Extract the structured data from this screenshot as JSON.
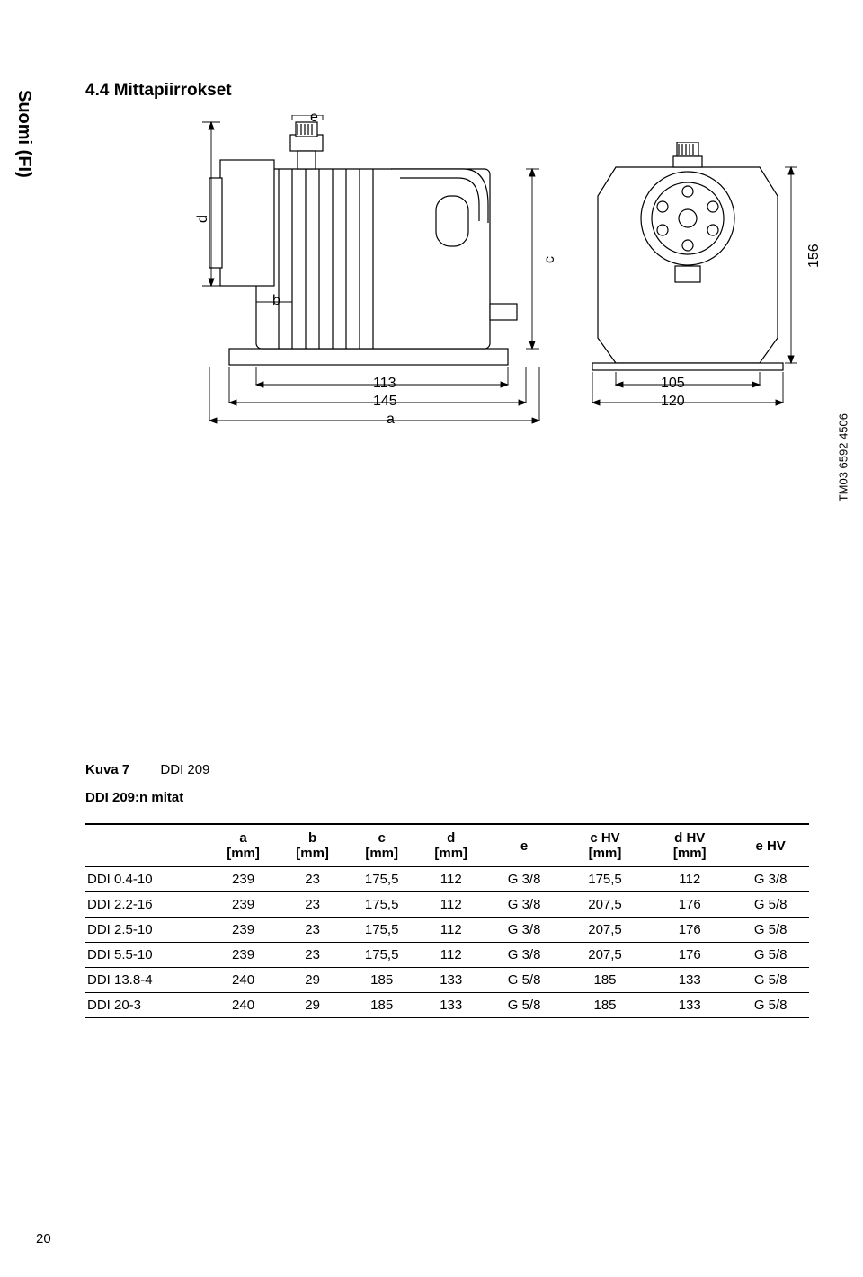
{
  "side_tab": "Suomi (FI)",
  "section_title": "4.4 Mittapiirrokset",
  "doc_ref": "TM03 6592 4506",
  "fig_caption": {
    "label": "Kuva 7",
    "title": "DDI 209"
  },
  "sub_heading": "DDI 209:n mitat",
  "diagram_labels": {
    "e": "e",
    "d": "d",
    "b": "b",
    "c": "c",
    "a": "a",
    "n113": "113",
    "n145": "145",
    "n105": "105",
    "n120": "120",
    "n156": "156"
  },
  "table": {
    "columns": [
      "",
      "a\n[mm]",
      "b\n[mm]",
      "c\n[mm]",
      "d\n[mm]",
      "e",
      "c HV\n[mm]",
      "d HV\n[mm]",
      "e HV"
    ],
    "rows": [
      [
        "DDI 0.4-10",
        "239",
        "23",
        "175,5",
        "112",
        "G 3/8",
        "175,5",
        "112",
        "G 3/8"
      ],
      [
        "DDI 2.2-16",
        "239",
        "23",
        "175,5",
        "112",
        "G 3/8",
        "207,5",
        "176",
        "G 5/8"
      ],
      [
        "DDI 2.5-10",
        "239",
        "23",
        "175,5",
        "112",
        "G 3/8",
        "207,5",
        "176",
        "G 5/8"
      ],
      [
        "DDI 5.5-10",
        "239",
        "23",
        "175,5",
        "112",
        "G 3/8",
        "207,5",
        "176",
        "G 5/8"
      ],
      [
        "DDI 13.8-4",
        "240",
        "29",
        "185",
        "133",
        "G 5/8",
        "185",
        "133",
        "G 5/8"
      ],
      [
        "DDI 20-3",
        "240",
        "29",
        "185",
        "133",
        "G 5/8",
        "185",
        "133",
        "G 5/8"
      ]
    ],
    "col_widths": [
      "16%",
      "9%",
      "9%",
      "9%",
      "9%",
      "10%",
      "11%",
      "11%",
      "10%"
    ]
  },
  "page_number": "20",
  "colors": {
    "stroke": "#000000",
    "fill": "#ffffff",
    "text": "#000000"
  }
}
